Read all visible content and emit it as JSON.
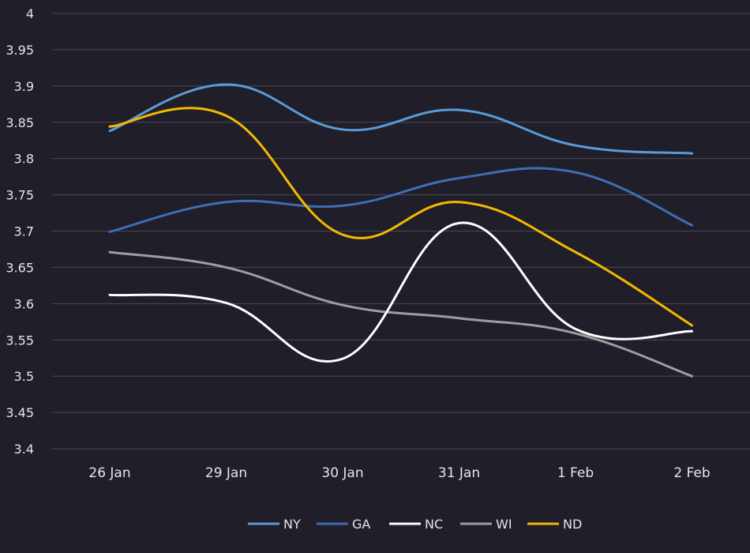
{
  "chart_data": {
    "type": "line",
    "title": "",
    "xlabel": "",
    "ylabel": "",
    "categories": [
      "26 Jan",
      "29 Jan",
      "30 Jan",
      "31 Jan",
      "1 Feb",
      "2 Feb"
    ],
    "ylim": [
      3.4,
      4
    ],
    "yticks": [
      "3.4",
      "3.45",
      "3.5",
      "3.55",
      "3.6",
      "3.65",
      "3.7",
      "3.75",
      "3.8",
      "3.85",
      "3.9",
      "3.95",
      "4"
    ],
    "grid": "horizontal",
    "smooth": true,
    "legend_position": "bottom",
    "series": [
      {
        "name": "NY",
        "color": "#5b9bd5",
        "values": [
          3.838,
          3.902,
          3.84,
          3.867,
          3.818,
          3.807
        ]
      },
      {
        "name": "GA",
        "color": "#3f6db3",
        "values": [
          3.699,
          3.74,
          3.735,
          3.773,
          3.781,
          3.708
        ]
      },
      {
        "name": "NC",
        "color": "#ffffff",
        "values": [
          3.612,
          3.601,
          3.524,
          3.711,
          3.565,
          3.562
        ]
      },
      {
        "name": "WI",
        "color": "#9e9e9e",
        "values": [
          3.671,
          3.65,
          3.598,
          3.58,
          3.559,
          3.5
        ]
      },
      {
        "name": "ND",
        "color": "#f5b800",
        "values": [
          3.844,
          3.859,
          3.695,
          3.74,
          3.671,
          3.57
        ]
      }
    ]
  }
}
